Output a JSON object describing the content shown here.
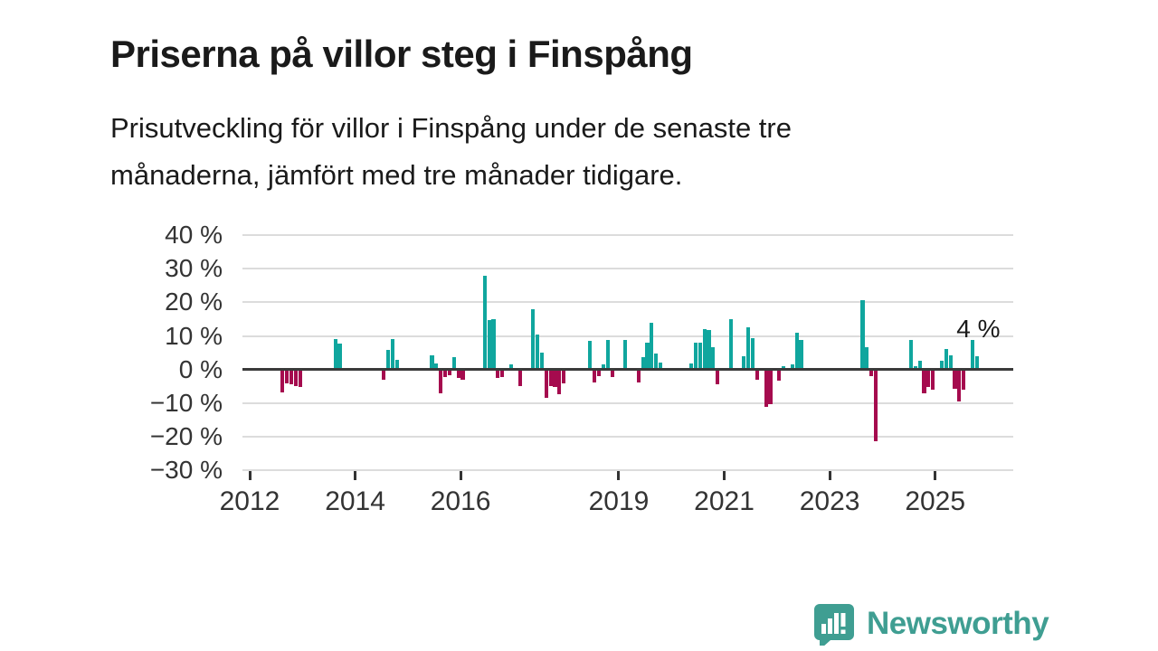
{
  "header": {
    "title": "Priserna på villor steg i Finspång",
    "subtitle_lines": [
      "Prisutveckling för villor i Finspång under de senaste tre",
      "månaderna, jämfört med tre månader tidigare."
    ]
  },
  "chart_data": {
    "type": "bar",
    "unit": "%",
    "ylim": [
      -30,
      40
    ],
    "grid": true,
    "legend": "none",
    "x_start_year": 2012,
    "positive_color": "#10a69e",
    "negative_color": "#a50b4e",
    "y_ticks": [
      {
        "label": "40 %",
        "value": 40
      },
      {
        "label": "30 %",
        "value": 30
      },
      {
        "label": "20 %",
        "value": 20
      },
      {
        "label": "10 %",
        "value": 10
      },
      {
        "label": "0 %",
        "value": 0
      },
      {
        "label": "−10 %",
        "value": -10
      },
      {
        "label": "−20 %",
        "value": -20
      },
      {
        "label": "−30 %",
        "value": -30
      }
    ],
    "x_ticks": [
      {
        "label": "2012",
        "year": 2012
      },
      {
        "label": "2014",
        "year": 2014
      },
      {
        "label": "2016",
        "year": 2016
      },
      {
        "label": "2019",
        "year": 2019
      },
      {
        "label": "2021",
        "year": 2021
      },
      {
        "label": "2023",
        "year": 2023
      },
      {
        "label": "2025",
        "year": 2025
      }
    ],
    "annotation": {
      "text": "4 %",
      "month": "2025-10"
    },
    "points": [
      {
        "month": "2012-08",
        "value": -6.7
      },
      {
        "month": "2012-09",
        "value": -4.0
      },
      {
        "month": "2012-10",
        "value": -4.3
      },
      {
        "month": "2012-11",
        "value": -4.9
      },
      {
        "month": "2012-12",
        "value": -5.1
      },
      {
        "month": "2013-08",
        "value": 9.0
      },
      {
        "month": "2013-09",
        "value": 7.7
      },
      {
        "month": "2014-07",
        "value": -2.9
      },
      {
        "month": "2014-08",
        "value": 5.8
      },
      {
        "month": "2014-09",
        "value": 9.2
      },
      {
        "month": "2014-10",
        "value": 2.8
      },
      {
        "month": "2015-06",
        "value": 4.3
      },
      {
        "month": "2015-07",
        "value": 1.8
      },
      {
        "month": "2015-08",
        "value": -7.1
      },
      {
        "month": "2015-09",
        "value": -2.3
      },
      {
        "month": "2015-10",
        "value": -1.8
      },
      {
        "month": "2015-11",
        "value": 3.7
      },
      {
        "month": "2015-12",
        "value": -2.5
      },
      {
        "month": "2016-01",
        "value": -2.9
      },
      {
        "month": "2016-06",
        "value": 27.8
      },
      {
        "month": "2016-07",
        "value": 14.7
      },
      {
        "month": "2016-08",
        "value": 15.0
      },
      {
        "month": "2016-09",
        "value": -2.6
      },
      {
        "month": "2016-10",
        "value": -2.3
      },
      {
        "month": "2016-12",
        "value": 1.5
      },
      {
        "month": "2017-02",
        "value": -4.9
      },
      {
        "month": "2017-05",
        "value": 17.9
      },
      {
        "month": "2017-06",
        "value": 10.3
      },
      {
        "month": "2017-07",
        "value": 5.0
      },
      {
        "month": "2017-08",
        "value": -8.4
      },
      {
        "month": "2017-09",
        "value": -5.0
      },
      {
        "month": "2017-10",
        "value": -5.2
      },
      {
        "month": "2017-11",
        "value": -7.4
      },
      {
        "month": "2017-12",
        "value": -4.1
      },
      {
        "month": "2018-06",
        "value": 8.5
      },
      {
        "month": "2018-07",
        "value": -3.9
      },
      {
        "month": "2018-08",
        "value": -2.0
      },
      {
        "month": "2018-09",
        "value": 1.5
      },
      {
        "month": "2018-10",
        "value": 8.7
      },
      {
        "month": "2018-11",
        "value": -2.2
      },
      {
        "month": "2019-02",
        "value": 8.7
      },
      {
        "month": "2019-05",
        "value": -3.9
      },
      {
        "month": "2019-06",
        "value": 3.8
      },
      {
        "month": "2019-07",
        "value": 8.0
      },
      {
        "month": "2019-08",
        "value": 14.0
      },
      {
        "month": "2019-09",
        "value": 4.7
      },
      {
        "month": "2019-10",
        "value": 2.0
      },
      {
        "month": "2020-05",
        "value": 1.7
      },
      {
        "month": "2020-06",
        "value": 8.1
      },
      {
        "month": "2020-07",
        "value": 8.1
      },
      {
        "month": "2020-08",
        "value": 12.0
      },
      {
        "month": "2020-09",
        "value": 11.7
      },
      {
        "month": "2020-10",
        "value": 6.6
      },
      {
        "month": "2020-11",
        "value": -4.3
      },
      {
        "month": "2021-02",
        "value": 14.9
      },
      {
        "month": "2021-05",
        "value": 4.1
      },
      {
        "month": "2021-06",
        "value": 12.7
      },
      {
        "month": "2021-07",
        "value": 9.4
      },
      {
        "month": "2021-08",
        "value": -3.0
      },
      {
        "month": "2021-10",
        "value": -11.2
      },
      {
        "month": "2021-11",
        "value": -10.3
      },
      {
        "month": "2022-01",
        "value": -3.3
      },
      {
        "month": "2022-02",
        "value": 0.9
      },
      {
        "month": "2022-04",
        "value": 1.6
      },
      {
        "month": "2022-05",
        "value": 11.1
      },
      {
        "month": "2022-06",
        "value": 8.9
      },
      {
        "month": "2023-08",
        "value": 20.6
      },
      {
        "month": "2023-09",
        "value": 6.6
      },
      {
        "month": "2023-10",
        "value": -2.0
      },
      {
        "month": "2023-11",
        "value": -21.3
      },
      {
        "month": "2024-07",
        "value": 8.8
      },
      {
        "month": "2024-08",
        "value": 1.0
      },
      {
        "month": "2024-09",
        "value": 2.7
      },
      {
        "month": "2024-10",
        "value": -7.1
      },
      {
        "month": "2024-11",
        "value": -5.2
      },
      {
        "month": "2024-12",
        "value": -5.9
      },
      {
        "month": "2025-02",
        "value": 2.7
      },
      {
        "month": "2025-03",
        "value": 6.0
      },
      {
        "month": "2025-04",
        "value": 4.2
      },
      {
        "month": "2025-05",
        "value": -5.8
      },
      {
        "month": "2025-06",
        "value": -9.4
      },
      {
        "month": "2025-07",
        "value": -6.1
      },
      {
        "month": "2025-09",
        "value": 8.7
      },
      {
        "month": "2025-10",
        "value": 4.0
      }
    ]
  },
  "footer": {
    "brand": "Newsworthy",
    "brand_color": "#3f9e92"
  }
}
